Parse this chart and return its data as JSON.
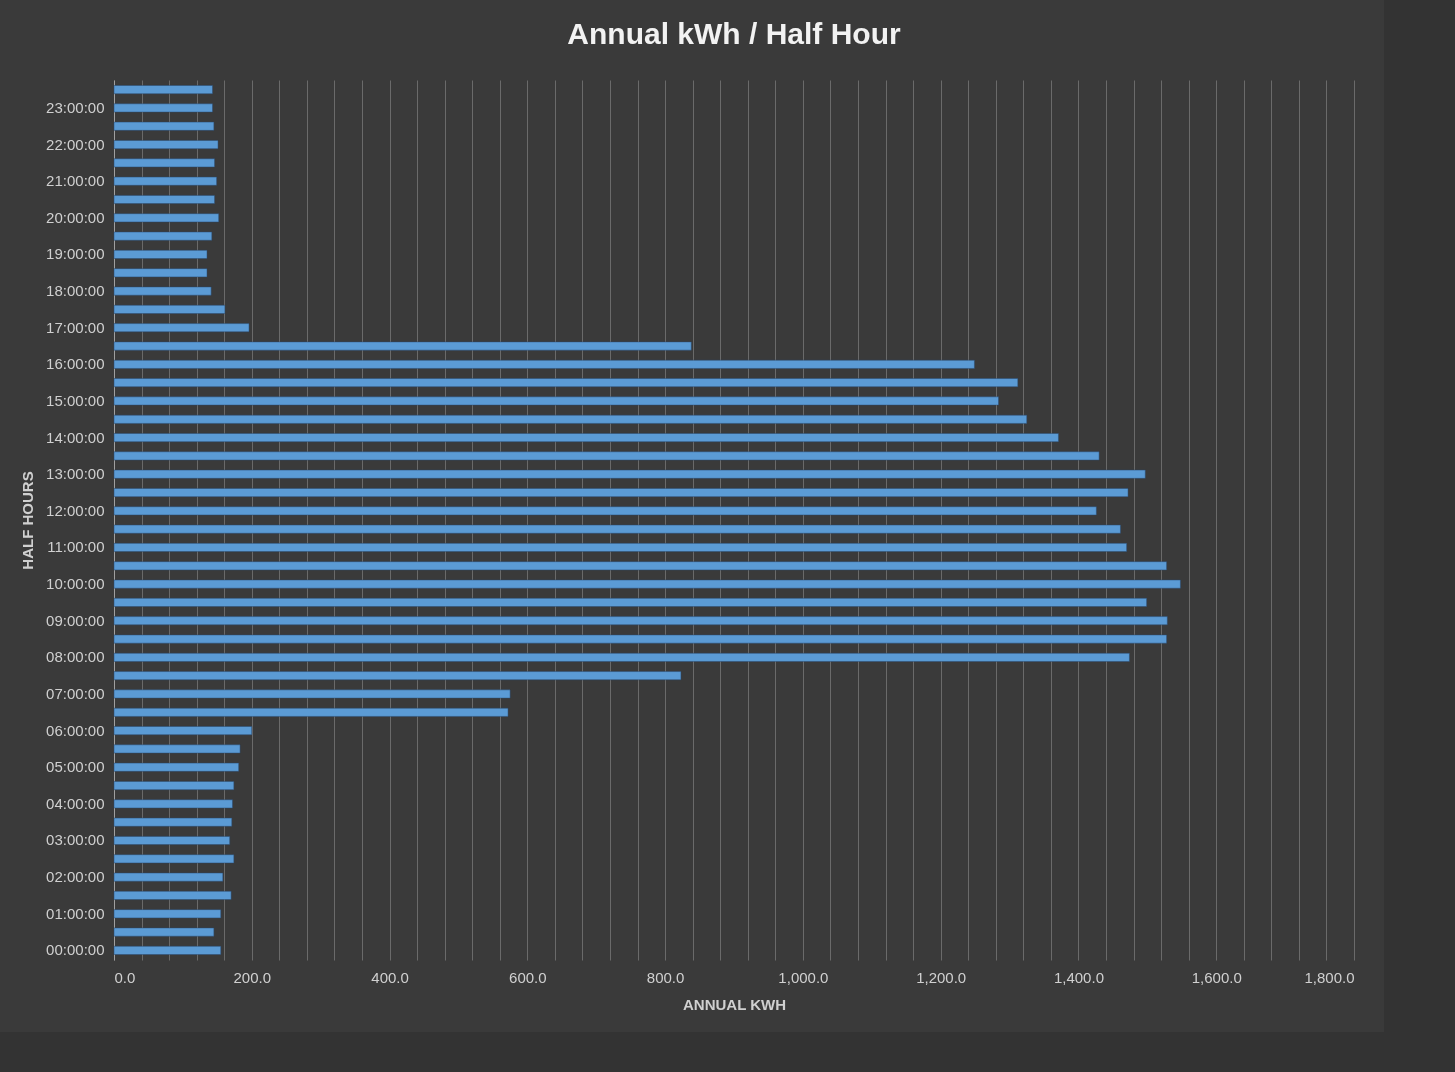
{
  "chart_data": {
    "type": "bar",
    "orientation": "horizontal",
    "title": "Annual kWh / Half Hour",
    "xlabel": "ANNUAL KWH",
    "ylabel": "HALF HOURS",
    "categories": [
      null,
      "23:00:00",
      null,
      "22:00:00",
      null,
      "21:00:00",
      null,
      "20:00:00",
      null,
      "19:00:00",
      null,
      "18:00:00",
      null,
      "17:00:00",
      null,
      "16:00:00",
      null,
      "15:00:00",
      null,
      "14:00:00",
      null,
      "13:00:00",
      null,
      "12:00:00",
      null,
      "11:00:00",
      null,
      "10:00:00",
      null,
      "09:00:00",
      null,
      "08:00:00",
      null,
      "07:00:00",
      null,
      "06:00:00",
      null,
      "05:00:00",
      null,
      "04:00:00",
      null,
      "03:00:00",
      null,
      "02:00:00",
      null,
      "01:00:00",
      null,
      "00:00:00"
    ],
    "values": [
      143,
      143,
      145,
      151,
      146,
      149,
      146,
      152,
      142,
      135,
      135,
      141,
      161,
      196,
      838,
      1249,
      1312,
      1284,
      1325,
      1371,
      1430,
      1497,
      1472,
      1426,
      1461,
      1470,
      1528,
      1548,
      1499,
      1529,
      1528,
      1474,
      823,
      575,
      572,
      200,
      183,
      181,
      174,
      172,
      171,
      168,
      174,
      158,
      170,
      155,
      145,
      155
    ],
    "color": "#5b9bd5",
    "xlim": [
      0,
      1800
    ],
    "xticks": [
      {
        "value": 0,
        "label": "0.0"
      },
      {
        "value": 40,
        "label": null
      },
      {
        "value": 80,
        "label": null
      },
      {
        "value": 120,
        "label": null
      },
      {
        "value": 160,
        "label": null
      },
      {
        "value": 200,
        "label": "200.0"
      },
      {
        "value": 240,
        "label": null
      },
      {
        "value": 280,
        "label": null
      },
      {
        "value": 320,
        "label": null
      },
      {
        "value": 360,
        "label": null
      },
      {
        "value": 400,
        "label": "400.0"
      },
      {
        "value": 440,
        "label": null
      },
      {
        "value": 480,
        "label": null
      },
      {
        "value": 520,
        "label": null
      },
      {
        "value": 560,
        "label": null
      },
      {
        "value": 600,
        "label": "600.0"
      },
      {
        "value": 640,
        "label": null
      },
      {
        "value": 680,
        "label": null
      },
      {
        "value": 720,
        "label": null
      },
      {
        "value": 760,
        "label": null
      },
      {
        "value": 800,
        "label": "800.0"
      },
      {
        "value": 840,
        "label": null
      },
      {
        "value": 880,
        "label": null
      },
      {
        "value": 920,
        "label": null
      },
      {
        "value": 960,
        "label": null
      },
      {
        "value": 1000,
        "label": "1,000.0"
      },
      {
        "value": 1040,
        "label": null
      },
      {
        "value": 1080,
        "label": null
      },
      {
        "value": 1120,
        "label": null
      },
      {
        "value": 1160,
        "label": null
      },
      {
        "value": 1200,
        "label": "1,200.0"
      },
      {
        "value": 1240,
        "label": null
      },
      {
        "value": 1280,
        "label": null
      },
      {
        "value": 1320,
        "label": null
      },
      {
        "value": 1360,
        "label": null
      },
      {
        "value": 1400,
        "label": "1,400.0"
      },
      {
        "value": 1440,
        "label": null
      },
      {
        "value": 1480,
        "label": null
      },
      {
        "value": 1520,
        "label": null
      },
      {
        "value": 1560,
        "label": null
      },
      {
        "value": 1600,
        "label": "1,600.0"
      },
      {
        "value": 1640,
        "label": null
      },
      {
        "value": 1680,
        "label": null
      },
      {
        "value": 1720,
        "label": null
      },
      {
        "value": 1760,
        "label": null
      },
      {
        "value": 1800,
        "label": "1,800.0"
      }
    ],
    "grid": true
  }
}
